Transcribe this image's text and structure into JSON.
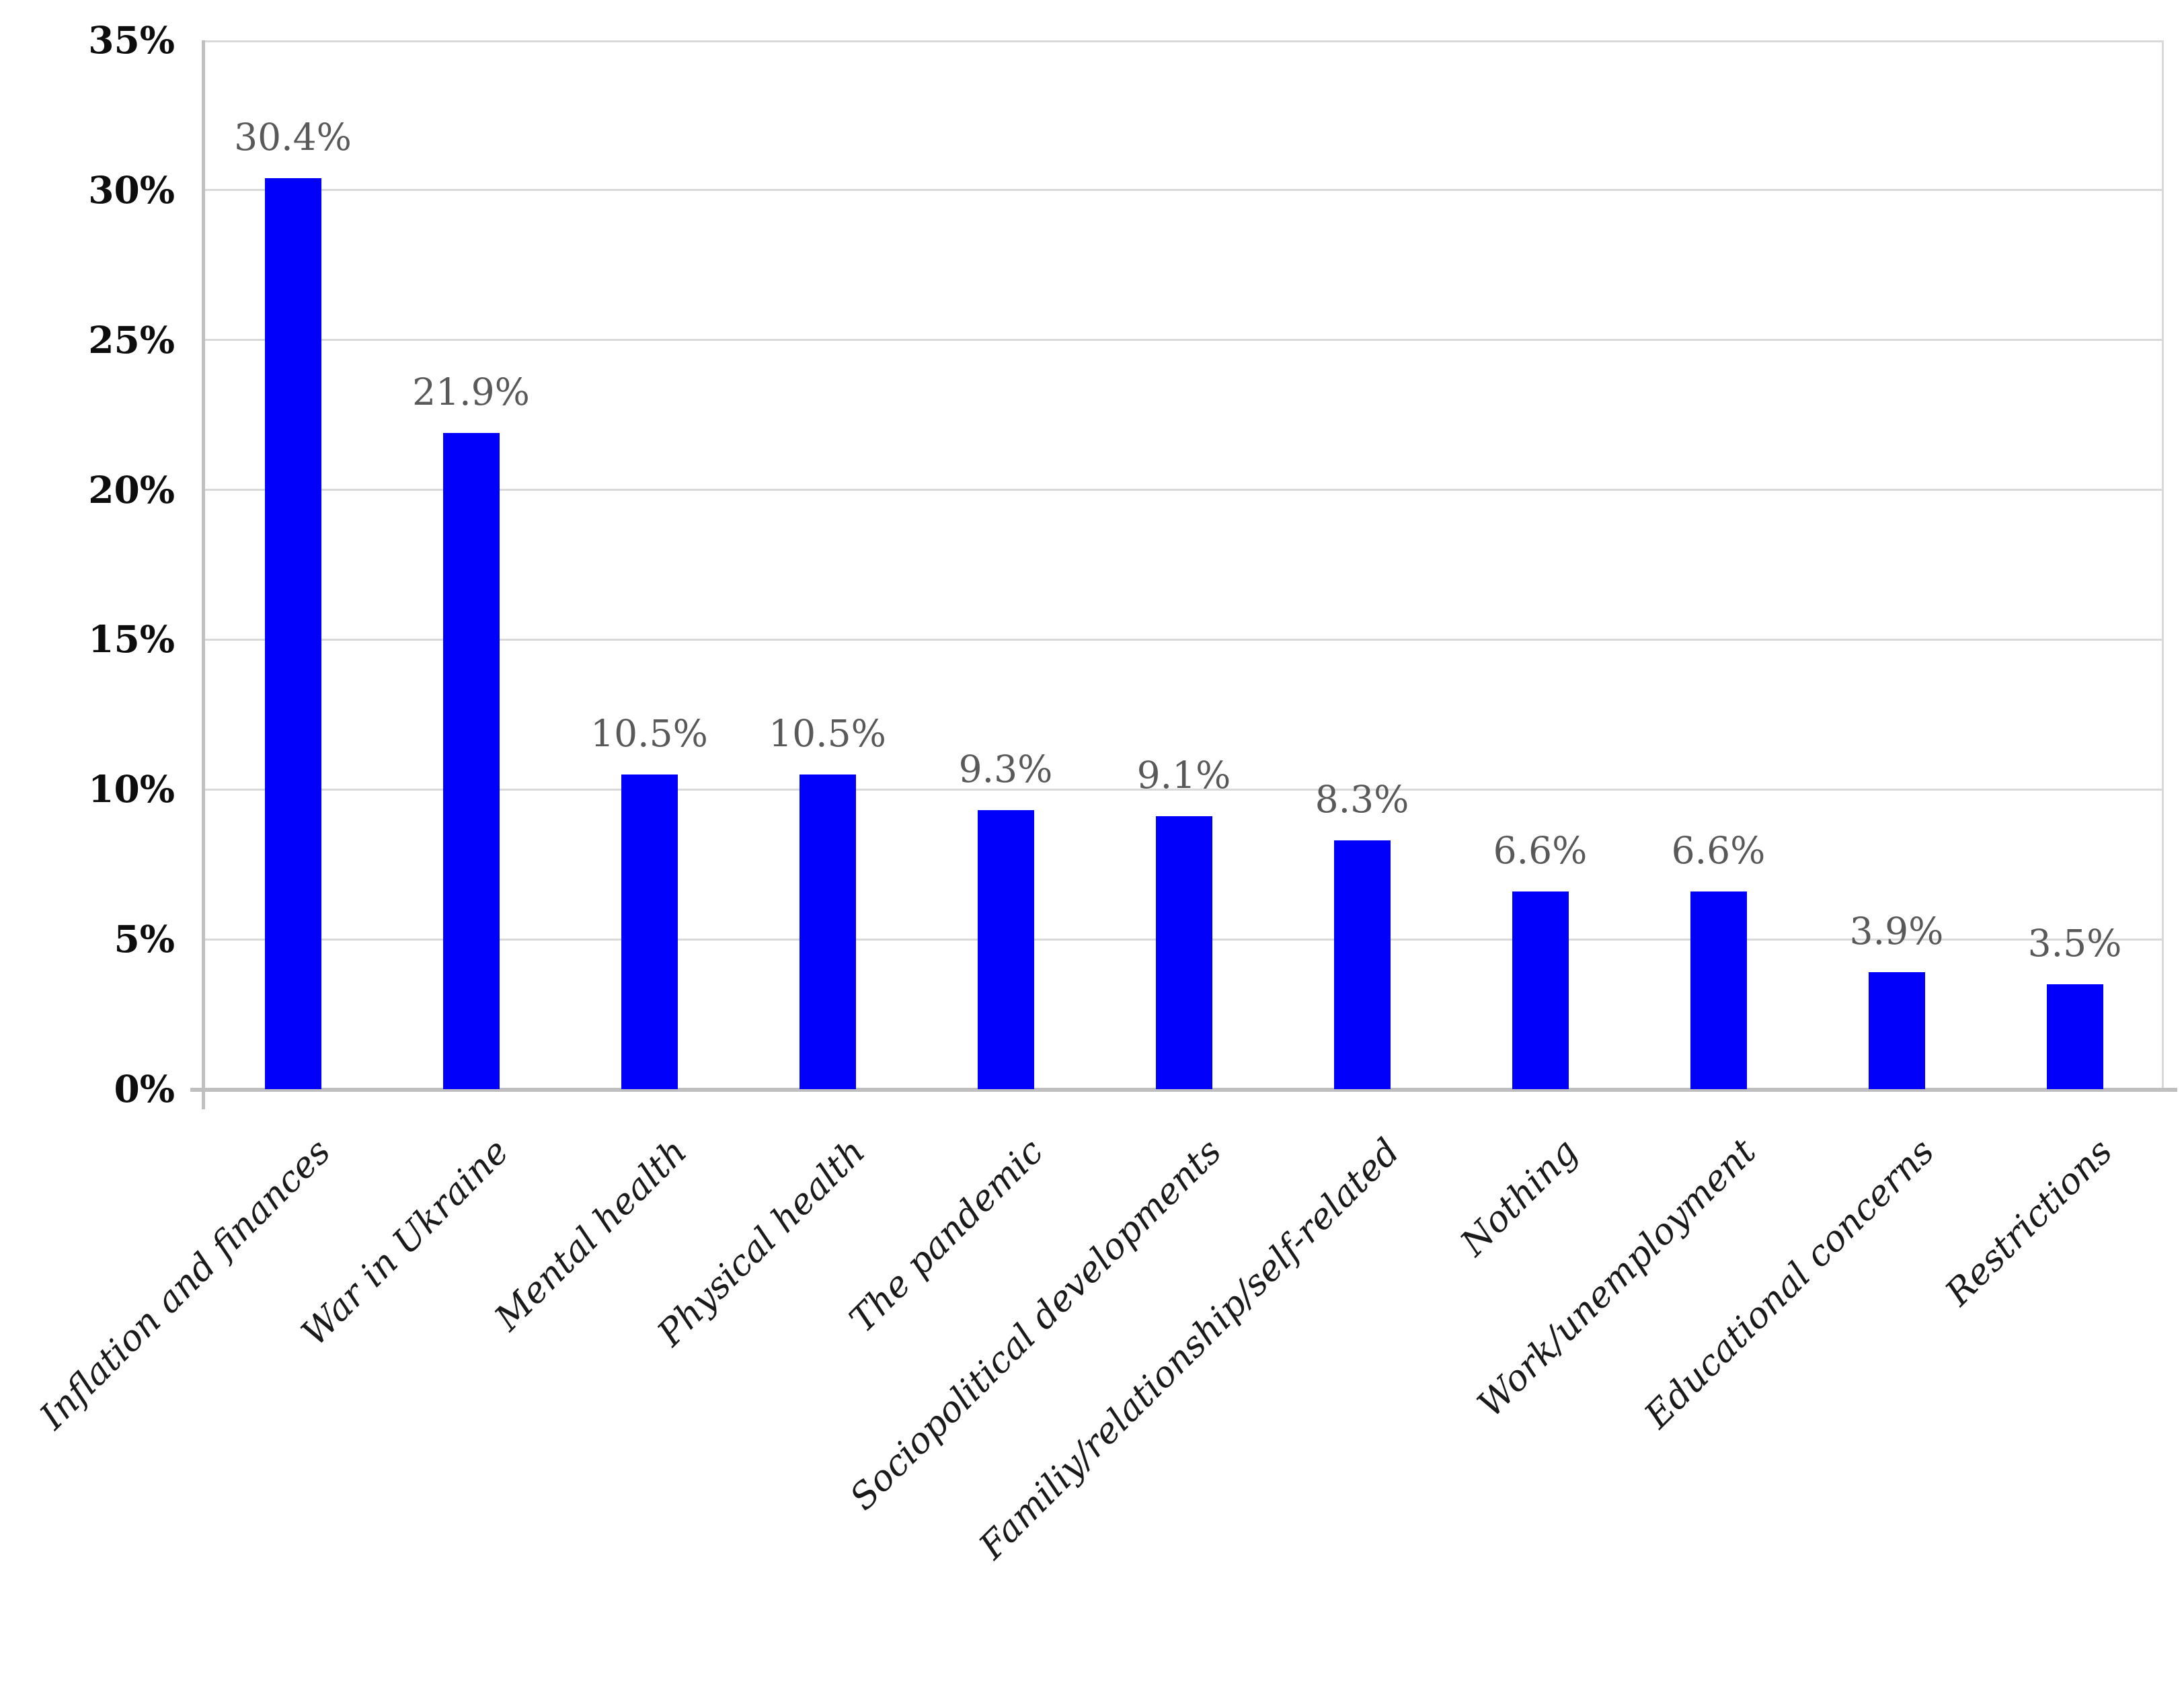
{
  "chart_data": {
    "type": "bar",
    "title": "",
    "xlabel": "",
    "ylabel": "",
    "categories": [
      "Inflation and finances",
      "War in Ukraine",
      "Mental health",
      "Physical health",
      "The pandemic",
      "Sociopolitical developments",
      "Familiy/relationship/self-related",
      "Nothing",
      "Work/unemployment",
      "Educational concerns",
      "Restrictions"
    ],
    "values": [
      30.4,
      21.9,
      10.5,
      10.5,
      9.3,
      9.1,
      8.3,
      6.6,
      6.6,
      3.9,
      3.5
    ],
    "data_labels": [
      "30.4%",
      "21.9%",
      "10.5%",
      "10.5%",
      "9.3%",
      "9.1%",
      "8.3%",
      "6.6%",
      "6.6%",
      "3.9%",
      "3.5%"
    ],
    "ylim": [
      0,
      35
    ],
    "ytick_step": 5,
    "ytick_labels": [
      "0%",
      "5%",
      "10%",
      "15%",
      "20%",
      "25%",
      "30%",
      "35%"
    ],
    "grid": true,
    "legend_position": "none",
    "bar_color": "#0000fb",
    "data_label_color": "#595959",
    "grid_color": "#d9d9d9",
    "axis_color": "#bfbfbf",
    "background_color": "#ffffff"
  }
}
